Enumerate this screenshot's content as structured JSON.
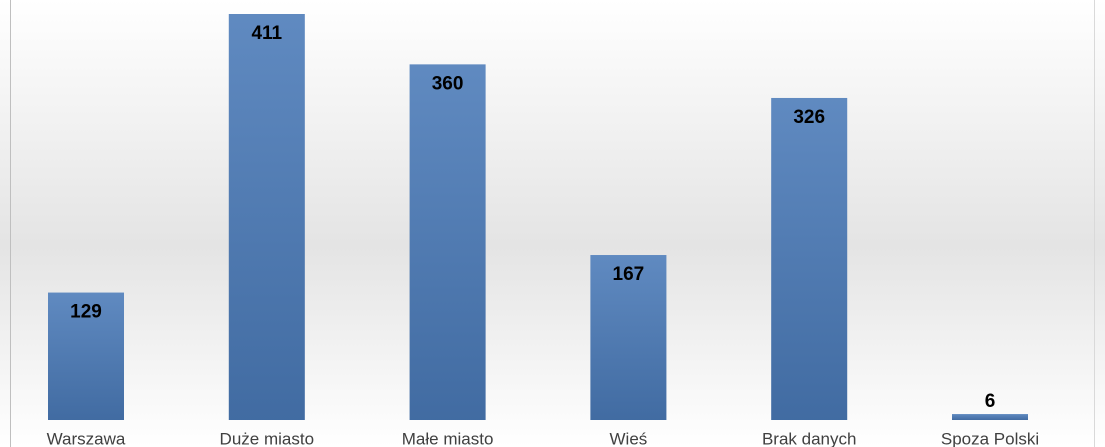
{
  "chart_data": {
    "type": "bar",
    "categories": [
      "Warszawa",
      "Duże miasto",
      "Małe miasto",
      "Wieś",
      "Brak danych",
      "Spoza Polski"
    ],
    "values": [
      129,
      411,
      360,
      167,
      326,
      6
    ],
    "color": "#4a7ab8"
  }
}
